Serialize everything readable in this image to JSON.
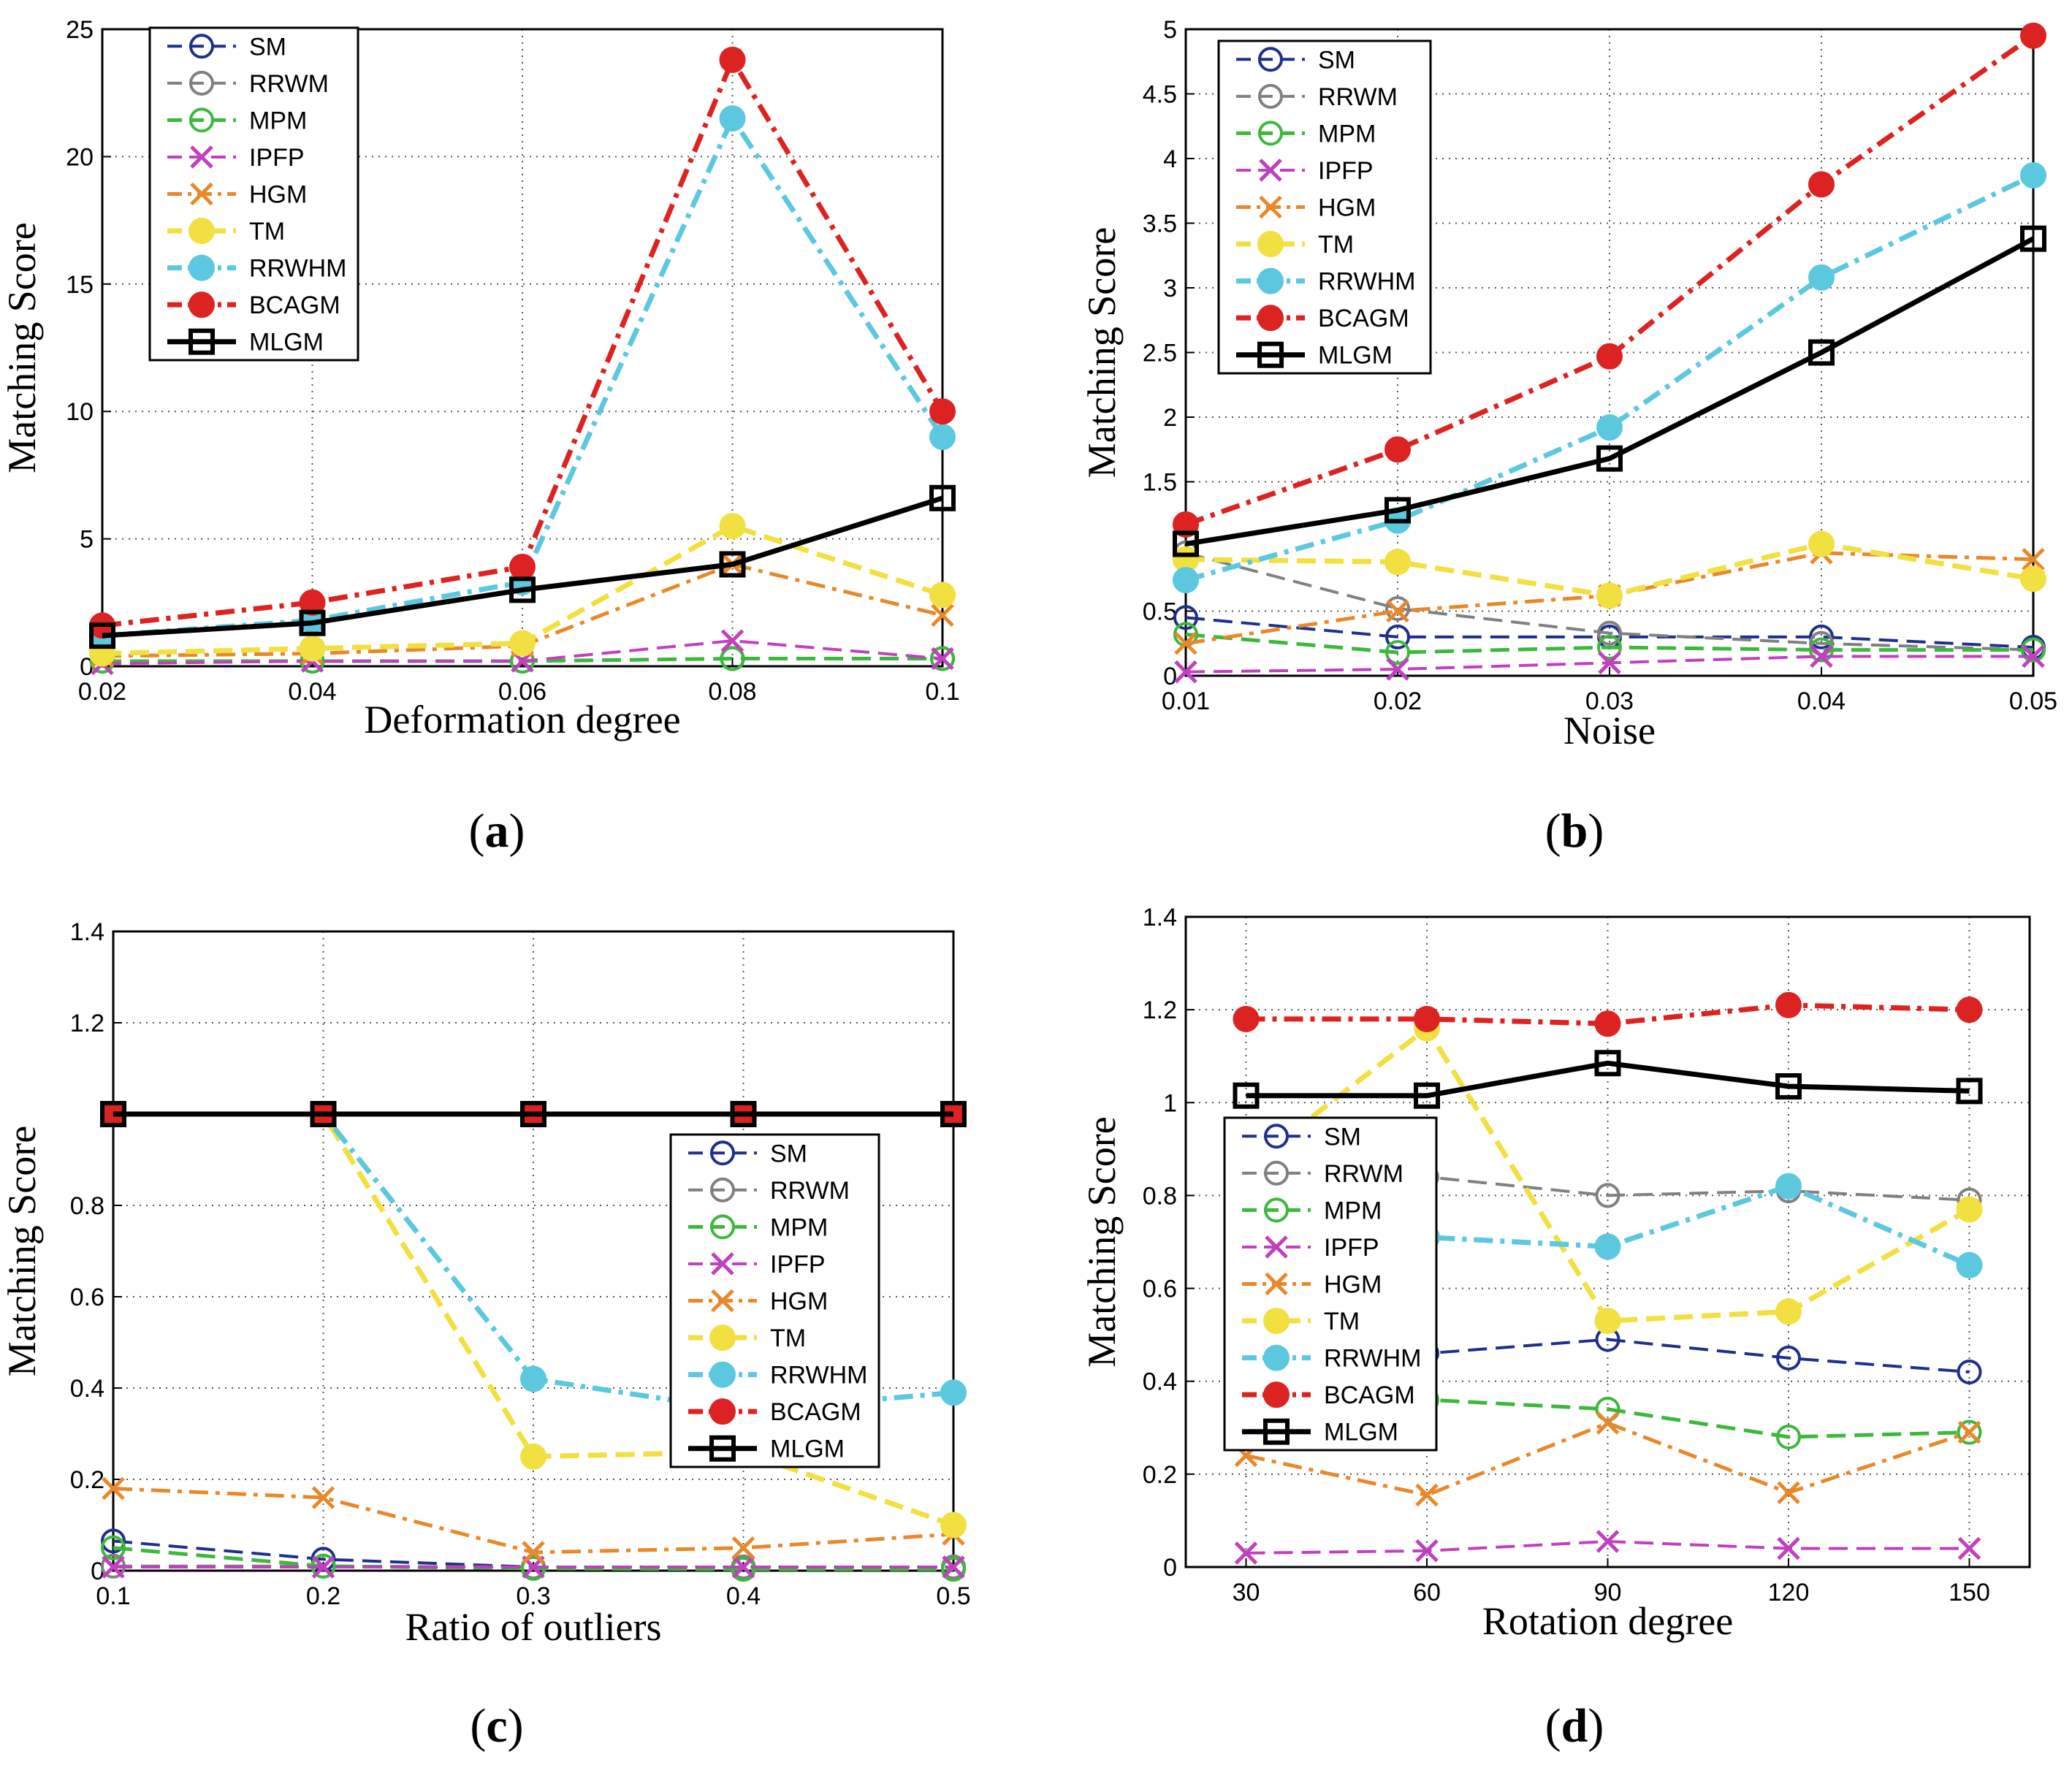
{
  "captions": [
    {
      "open": "(",
      "letter": "a",
      "close": ")"
    },
    {
      "open": "(",
      "letter": "b",
      "close": ")"
    },
    {
      "open": "(",
      "letter": "c",
      "close": ")"
    },
    {
      "open": "(",
      "letter": "d",
      "close": ")"
    }
  ],
  "series_style": {
    "SM": {
      "color": "#1f2f8c",
      "marker": "circle-open",
      "dash": "dash",
      "width": 4
    },
    "RRWM": {
      "color": "#808080",
      "marker": "circle-open",
      "dash": "dash",
      "width": 4
    },
    "MPM": {
      "color": "#3cb83c",
      "marker": "circle-open",
      "dash": "dash",
      "width": 5
    },
    "IPFP": {
      "color": "#c040c0",
      "marker": "x",
      "dash": "dash",
      "width": 4
    },
    "HGM": {
      "color": "#e8882a",
      "marker": "x",
      "dash": "dashdot",
      "width": 5
    },
    "TM": {
      "color": "#f2e040",
      "marker": "dot",
      "dash": "dash",
      "width": 7
    },
    "RRWHM": {
      "color": "#5cc8e0",
      "marker": "dot",
      "dash": "dashdot",
      "width": 7
    },
    "BCAGM": {
      "color": "#dd2222",
      "marker": "dot",
      "dash": "dashdot",
      "width": 7
    },
    "MLGM": {
      "color": "#000000",
      "marker": "square-open",
      "dash": "solid",
      "width": 7
    }
  },
  "chart_data": [
    {
      "type": "line",
      "xlabel": "Deformation degree",
      "ylabel": "Matching Score",
      "x": [
        0.02,
        0.04,
        0.06,
        0.08,
        0.1
      ],
      "x_ticks": [
        "0.02",
        "0.04",
        "0.06",
        "0.08",
        "0.1"
      ],
      "xlim": [
        0.02,
        0.1
      ],
      "ylim": [
        0,
        25
      ],
      "y_ticks": [
        0,
        5,
        10,
        15,
        20,
        25
      ],
      "y_tick_labels": [
        "0",
        "5",
        "10",
        "15",
        "20",
        "25"
      ],
      "grid": true,
      "legend_position": "top-left",
      "series": [
        {
          "name": "SM",
          "values": [
            0.2,
            0.2,
            0.2,
            0.3,
            0.3
          ]
        },
        {
          "name": "RRWM",
          "values": [
            0.2,
            0.2,
            0.2,
            0.3,
            0.3
          ]
        },
        {
          "name": "MPM",
          "values": [
            0.2,
            0.2,
            0.2,
            0.3,
            0.3
          ]
        },
        {
          "name": "IPFP",
          "values": [
            0.1,
            0.2,
            0.2,
            1.0,
            0.3
          ]
        },
        {
          "name": "HGM",
          "values": [
            0.4,
            0.5,
            0.8,
            4.0,
            2.0
          ]
        },
        {
          "name": "TM",
          "values": [
            0.5,
            0.7,
            0.9,
            5.5,
            2.8
          ]
        },
        {
          "name": "RRWHM",
          "values": [
            1.2,
            1.8,
            3.3,
            21.5,
            9.0
          ]
        },
        {
          "name": "BCAGM",
          "values": [
            1.6,
            2.5,
            3.9,
            23.8,
            10.0
          ]
        },
        {
          "name": "MLGM",
          "values": [
            1.2,
            1.7,
            3.0,
            4.0,
            6.6
          ]
        }
      ]
    },
    {
      "type": "line",
      "xlabel": "Noise",
      "ylabel": "Matching Score",
      "x": [
        0.01,
        0.02,
        0.03,
        0.04,
        0.05
      ],
      "x_ticks": [
        "0.01",
        "0.02",
        "0.03",
        "0.04",
        "0.05"
      ],
      "xlim": [
        0.01,
        0.05
      ],
      "ylim": [
        0,
        5
      ],
      "y_ticks": [
        0,
        0.5,
        1.5,
        2,
        2.5,
        3,
        3.5,
        4,
        4.5,
        5
      ],
      "y_tick_labels": [
        "0",
        "0.5",
        "1.5",
        "2",
        "2.5",
        "3",
        "3.5",
        "4",
        "4.5",
        "5"
      ],
      "grid": true,
      "legend_position": "top-left",
      "series": [
        {
          "name": "SM",
          "values": [
            0.45,
            0.3,
            0.3,
            0.3,
            0.22
          ]
        },
        {
          "name": "RRWM",
          "values": [
            0.95,
            0.52,
            0.33,
            0.25,
            0.2
          ]
        },
        {
          "name": "MPM",
          "values": [
            0.32,
            0.18,
            0.22,
            0.2,
            0.2
          ]
        },
        {
          "name": "IPFP",
          "values": [
            0.03,
            0.05,
            0.1,
            0.15,
            0.15
          ]
        },
        {
          "name": "HGM",
          "values": [
            0.25,
            0.5,
            0.62,
            0.95,
            0.9
          ]
        },
        {
          "name": "TM",
          "values": [
            0.9,
            0.88,
            0.62,
            1.02,
            0.75
          ]
        },
        {
          "name": "RRWHM",
          "values": [
            0.74,
            1.2,
            1.92,
            3.08,
            3.87
          ]
        },
        {
          "name": "BCAGM",
          "values": [
            1.17,
            1.75,
            2.47,
            3.8,
            4.95
          ]
        },
        {
          "name": "MLGM",
          "values": [
            1.02,
            1.28,
            1.68,
            2.5,
            3.38
          ]
        }
      ]
    },
    {
      "type": "line",
      "xlabel": "Ratio of outliers",
      "ylabel": "Matching Score",
      "x": [
        0.1,
        0.2,
        0.3,
        0.4,
        0.5
      ],
      "x_ticks": [
        "0.1",
        "0.2",
        "0.3",
        "0.4",
        "0.5"
      ],
      "xlim": [
        0.1,
        0.5
      ],
      "ylim": [
        0,
        1.4
      ],
      "y_ticks": [
        0,
        0.2,
        0.4,
        0.6,
        0.8,
        1.2,
        1.4
      ],
      "y_tick_labels": [
        "0",
        "0.2",
        "0.4",
        "0.6",
        "0.8",
        "1.2",
        "1.4"
      ],
      "grid": true,
      "legend_position": "center-right",
      "series": [
        {
          "name": "SM",
          "values": [
            0.065,
            0.025,
            0.008,
            0.008,
            0.008
          ]
        },
        {
          "name": "RRWM",
          "values": [
            0.01,
            0.01,
            0.008,
            0.008,
            0.008
          ]
        },
        {
          "name": "MPM",
          "values": [
            0.05,
            0.01,
            0.005,
            0.003,
            0.003
          ]
        },
        {
          "name": "IPFP",
          "values": [
            0.008,
            0.008,
            0.008,
            0.008,
            0.008
          ]
        },
        {
          "name": "HGM",
          "values": [
            0.18,
            0.16,
            0.04,
            0.05,
            0.08
          ]
        },
        {
          "name": "TM",
          "values": [
            1.0,
            1.0,
            0.25,
            0.26,
            0.1
          ]
        },
        {
          "name": "RRWHM",
          "values": [
            1.0,
            1.0,
            0.42,
            0.35,
            0.39
          ]
        },
        {
          "name": "BCAGM",
          "values": [
            1.0,
            1.0,
            1.0,
            1.0,
            1.0
          ]
        },
        {
          "name": "MLGM",
          "values": [
            1.0,
            1.0,
            1.0,
            1.0,
            1.0
          ]
        }
      ]
    },
    {
      "type": "line",
      "xlabel": "Rotation degree",
      "ylabel": "Matching Score",
      "x": [
        30,
        60,
        90,
        120,
        150
      ],
      "x_ticks": [
        "30",
        "60",
        "90",
        "120",
        "150"
      ],
      "xlim": [
        20,
        160
      ],
      "ylim": [
        0,
        1.4
      ],
      "y_ticks": [
        0,
        0.2,
        0.4,
        0.6,
        0.8,
        1,
        1.2,
        1.4
      ],
      "y_tick_labels": [
        "0",
        "0.2",
        "0.4",
        "0.6",
        "0.8",
        "1",
        "1.2",
        "1.4"
      ],
      "grid": true,
      "legend_position": "center-left",
      "series": [
        {
          "name": "SM",
          "values": [
            0.45,
            0.46,
            0.49,
            0.45,
            0.42
          ]
        },
        {
          "name": "RRWM",
          "values": [
            0.85,
            0.84,
            0.8,
            0.81,
            0.79
          ]
        },
        {
          "name": "MPM",
          "values": [
            0.36,
            0.36,
            0.34,
            0.28,
            0.29
          ]
        },
        {
          "name": "IPFP",
          "values": [
            0.03,
            0.035,
            0.055,
            0.04,
            0.04
          ]
        },
        {
          "name": "HGM",
          "values": [
            0.24,
            0.155,
            0.31,
            0.16,
            0.29
          ]
        },
        {
          "name": "TM",
          "values": [
            0.86,
            1.16,
            0.53,
            0.55,
            0.77
          ]
        },
        {
          "name": "RRWHM",
          "values": [
            0.7,
            0.71,
            0.69,
            0.82,
            0.65
          ]
        },
        {
          "name": "BCAGM",
          "values": [
            1.18,
            1.18,
            1.17,
            1.21,
            1.2
          ]
        },
        {
          "name": "MLGM",
          "values": [
            1.015,
            1.015,
            1.085,
            1.035,
            1.025
          ]
        }
      ]
    }
  ]
}
